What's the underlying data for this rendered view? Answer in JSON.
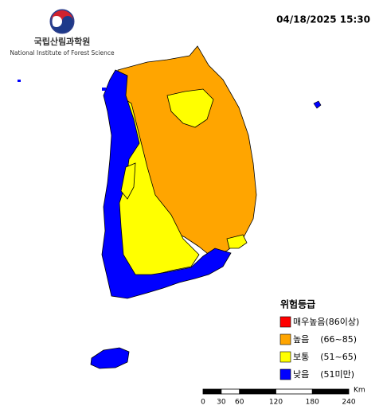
{
  "header": {
    "org_name": "국립산림과학원",
    "org_name_en": "National Institute of Forest Science",
    "timestamp": "04/18/2025 15:30"
  },
  "legend": {
    "title": "위험등급",
    "items": [
      {
        "label": "매우높음(86이상)",
        "color": "#ff0000"
      },
      {
        "label": "높음    (66~85)",
        "color": "#ffa500"
      },
      {
        "label": "보통    (51~65)",
        "color": "#ffff00"
      },
      {
        "label": "낮음    (51미만)",
        "color": "#0000ff"
      }
    ]
  },
  "scale_bar": {
    "ticks": [
      0,
      30,
      60,
      120,
      180,
      240
    ],
    "unit": "Km"
  }
}
